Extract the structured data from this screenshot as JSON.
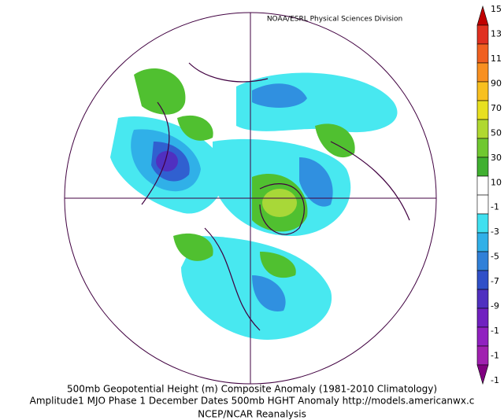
{
  "credit": "NOAA/ESRL Physical Sciences Division",
  "colorbar_labels": [
    "15",
    "13",
    "11",
    "90",
    "70",
    "50",
    "30",
    "10",
    "-1",
    "-3",
    "-5",
    "-7",
    "-9",
    "-1",
    "-1",
    "-1"
  ],
  "caption": [
    "500mb Geopotential Height (m) Composite Anomaly (1981-2010 Climatology)",
    "Amplitude1 MJO Phase 1 December Dates 500mb HGHT Anomaly http://models.americanwx.c",
    "NCEP/NCAR Reanalysis"
  ]
}
